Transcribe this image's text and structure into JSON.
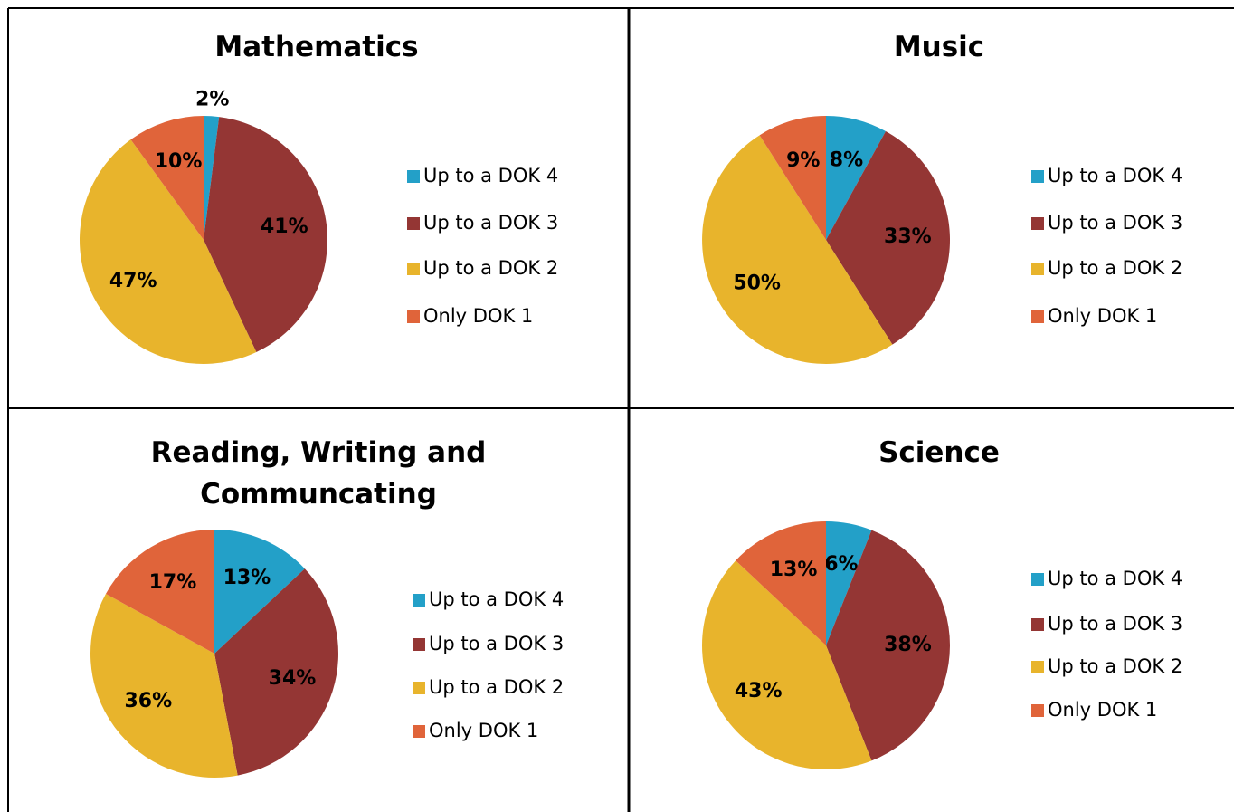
{
  "chart_data": [
    {
      "type": "pie",
      "title": "Mathematics",
      "categories": [
        "Up to a DOK 4",
        "Up to a DOK 3",
        "Up to a DOK 2",
        "Only DOK 1"
      ],
      "values": [
        2,
        41,
        47,
        10
      ],
      "value_labels": [
        "2%",
        "41%",
        "47%",
        "10%"
      ],
      "colors": [
        "#23a0c8",
        "#943634",
        "#e8b42c",
        "#e0643a"
      ]
    },
    {
      "type": "pie",
      "title": "Music",
      "categories": [
        "Up to a DOK 4",
        "Up to a DOK 3",
        "Up to a DOK 2",
        "Only DOK 1"
      ],
      "values": [
        8,
        33,
        50,
        9
      ],
      "value_labels": [
        "8%",
        "33%",
        "50%",
        "9%"
      ],
      "colors": [
        "#23a0c8",
        "#943634",
        "#e8b42c",
        "#e0643a"
      ]
    },
    {
      "type": "pie",
      "title": "Reading, Writing and Communcating",
      "categories": [
        "Up to a DOK 4",
        "Up to a DOK 3",
        "Up to a DOK 2",
        "Only DOK 1"
      ],
      "values": [
        13,
        34,
        36,
        17
      ],
      "value_labels": [
        "13%",
        "34%",
        "36%",
        "17%"
      ],
      "colors": [
        "#23a0c8",
        "#943634",
        "#e8b42c",
        "#e0643a"
      ]
    },
    {
      "type": "pie",
      "title": "Science",
      "categories": [
        "Up to a DOK 4",
        "Up to a DOK 3",
        "Up to a DOK 2",
        "Only DOK 1"
      ],
      "values": [
        6,
        38,
        43,
        13
      ],
      "value_labels": [
        "6%",
        "38%",
        "43%",
        "13%"
      ],
      "colors": [
        "#23a0c8",
        "#943634",
        "#e8b42c",
        "#e0643a"
      ]
    }
  ]
}
